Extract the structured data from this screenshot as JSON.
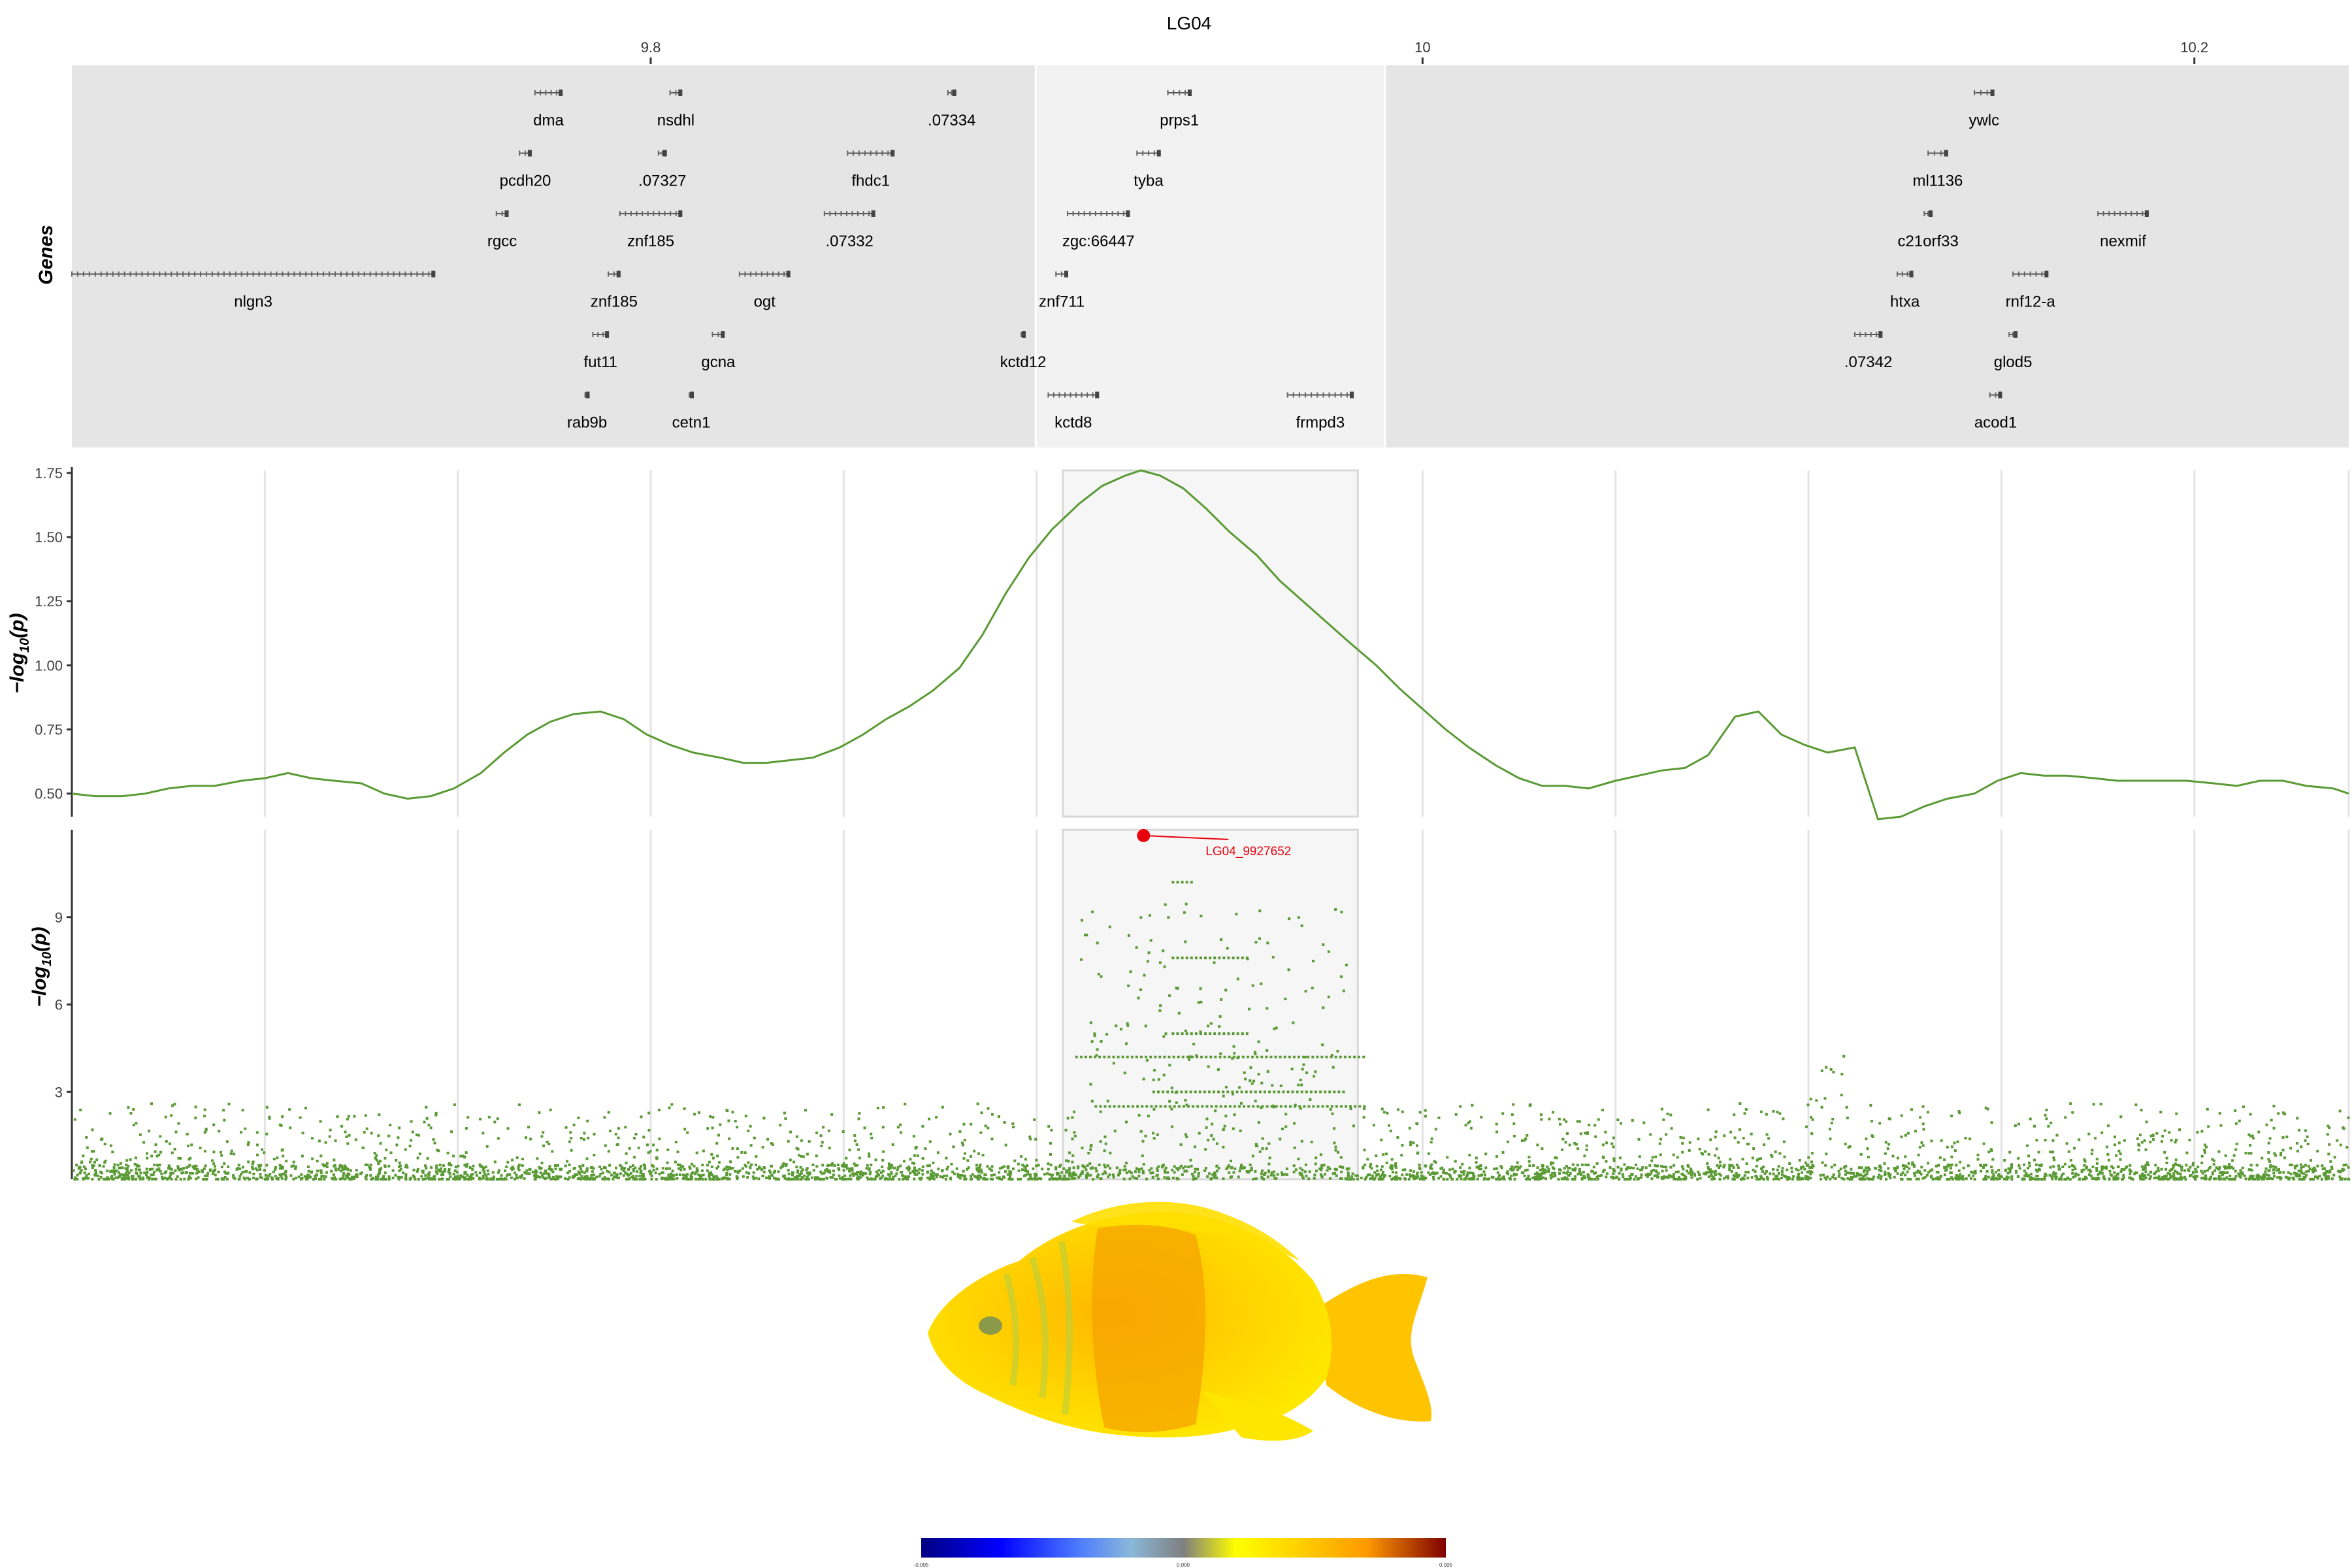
{
  "chart_data": [
    {
      "type": "gene-track",
      "title": "LG04",
      "x_ticks": [
        "9.8",
        "10",
        "10.2"
      ],
      "x_tick_values": [
        9.8,
        10.0,
        10.2
      ],
      "xlim": [
        9.65,
        10.24
      ],
      "ylabel": "Genes",
      "highlight_region": [
        9.9,
        9.99
      ],
      "genes": [
        {
          "name": "dma",
          "start": 9.77,
          "end": 9.777,
          "row": 0
        },
        {
          "name": "nsdhl",
          "start": 9.805,
          "end": 9.808,
          "row": 0
        },
        {
          "name": ".07334",
          "start": 9.877,
          "end": 9.879,
          "row": 0
        },
        {
          "name": "prps1",
          "start": 9.934,
          "end": 9.94,
          "row": 0
        },
        {
          "name": "ywlc",
          "start": 10.143,
          "end": 10.148,
          "row": 0
        },
        {
          "name": "pcdh20",
          "start": 9.766,
          "end": 9.769,
          "row": 1
        },
        {
          "name": ".07327",
          "start": 9.802,
          "end": 9.804,
          "row": 1
        },
        {
          "name": "fhdc1",
          "start": 9.851,
          "end": 9.863,
          "row": 1
        },
        {
          "name": "tyba",
          "start": 9.926,
          "end": 9.932,
          "row": 1
        },
        {
          "name": "ml1136",
          "start": 10.131,
          "end": 10.136,
          "row": 1
        },
        {
          "name": "rgcc",
          "start": 9.76,
          "end": 9.763,
          "row": 2
        },
        {
          "name": "znf185",
          "start": 9.792,
          "end": 9.808,
          "row": 2
        },
        {
          "name": ".07332",
          "start": 9.845,
          "end": 9.858,
          "row": 2
        },
        {
          "name": "zgc:66447",
          "start": 9.908,
          "end": 9.924,
          "row": 2
        },
        {
          "name": "c21orf33",
          "start": 10.13,
          "end": 10.132,
          "row": 2
        },
        {
          "name": "nexmif",
          "start": 10.175,
          "end": 10.188,
          "row": 2
        },
        {
          "name": "nlgn3",
          "start": 9.65,
          "end": 9.744,
          "row": 3
        },
        {
          "name": "znf185",
          "start": 9.789,
          "end": 9.792,
          "row": 3
        },
        {
          "name": "ogt",
          "start": 9.823,
          "end": 9.836,
          "row": 3
        },
        {
          "name": "znf711",
          "start": 9.905,
          "end": 9.908,
          "row": 3
        },
        {
          "name": "htxa",
          "start": 10.123,
          "end": 10.127,
          "row": 3
        },
        {
          "name": "rnf12-a",
          "start": 10.153,
          "end": 10.162,
          "row": 3
        },
        {
          "name": "fut11",
          "start": 9.785,
          "end": 9.789,
          "row": 4
        },
        {
          "name": "gcna",
          "start": 9.816,
          "end": 9.819,
          "row": 4
        },
        {
          "name": "kctd12",
          "start": 9.896,
          "end": 9.897,
          "row": 4
        },
        {
          "name": ".07342",
          "start": 10.112,
          "end": 10.119,
          "row": 4
        },
        {
          "name": "glod5",
          "start": 10.152,
          "end": 10.154,
          "row": 4
        },
        {
          "name": "rab9b",
          "start": 9.783,
          "end": 9.784,
          "row": 5
        },
        {
          "name": "cetn1",
          "start": 9.81,
          "end": 9.811,
          "row": 5
        },
        {
          "name": "kctd8",
          "start": 9.903,
          "end": 9.916,
          "row": 5
        },
        {
          "name": "frmpd3",
          "start": 9.965,
          "end": 9.982,
          "row": 5
        },
        {
          "name": "acod1",
          "start": 10.147,
          "end": 10.15,
          "row": 5
        }
      ]
    },
    {
      "type": "line",
      "ylabel": "-log10(p)",
      "xlim": [
        9.65,
        10.24
      ],
      "ylim": [
        0.41,
        1.76
      ],
      "y_ticks": [
        "0.50",
        "0.75",
        "1.00",
        "1.25",
        "1.50",
        "1.75"
      ],
      "y_tick_values": [
        0.5,
        0.75,
        1.0,
        1.25,
        1.5,
        1.75
      ],
      "color": "#5a9a34",
      "x": [
        9.65,
        9.656,
        9.663,
        9.669,
        9.675,
        9.681,
        9.687,
        9.694,
        9.7,
        9.706,
        9.712,
        9.718,
        9.725,
        9.731,
        9.737,
        9.743,
        9.749,
        9.756,
        9.762,
        9.768,
        9.774,
        9.78,
        9.787,
        9.793,
        9.799,
        9.805,
        9.811,
        9.818,
        9.824,
        9.83,
        9.836,
        9.842,
        9.849,
        9.855,
        9.861,
        9.867,
        9.873,
        9.88,
        9.886,
        9.892,
        9.898,
        9.904,
        9.911,
        9.917,
        9.923,
        9.927,
        9.932,
        9.938,
        9.944,
        9.95,
        9.957,
        9.963,
        9.969,
        9.975,
        9.981,
        9.988,
        9.994,
        10.0,
        10.006,
        10.012,
        10.019,
        10.025,
        10.031,
        10.037,
        10.043,
        10.05,
        10.056,
        10.062,
        10.068,
        10.074,
        10.081,
        10.087,
        10.093,
        10.099,
        10.105,
        10.112,
        10.118,
        10.124,
        10.13,
        10.136,
        10.143,
        10.149,
        10.155,
        10.161,
        10.167,
        10.174,
        10.18,
        10.186,
        10.192,
        10.198,
        10.205,
        10.211,
        10.217,
        10.223,
        10.229,
        10.236,
        10.24
      ],
      "y": [
        0.5,
        0.49,
        0.49,
        0.5,
        0.52,
        0.53,
        0.53,
        0.55,
        0.56,
        0.58,
        0.56,
        0.55,
        0.54,
        0.5,
        0.48,
        0.49,
        0.52,
        0.58,
        0.66,
        0.73,
        0.78,
        0.81,
        0.82,
        0.79,
        0.73,
        0.69,
        0.66,
        0.64,
        0.62,
        0.62,
        0.63,
        0.64,
        0.68,
        0.73,
        0.79,
        0.84,
        0.9,
        0.99,
        1.12,
        1.28,
        1.42,
        1.53,
        1.63,
        1.7,
        1.74,
        1.76,
        1.74,
        1.69,
        1.61,
        1.52,
        1.43,
        1.33,
        1.25,
        1.17,
        1.09,
        1.0,
        0.91,
        0.83,
        0.75,
        0.68,
        0.61,
        0.56,
        0.53,
        0.53,
        0.52,
        0.55,
        0.57,
        0.59,
        0.6,
        0.65,
        0.8,
        0.82,
        0.73,
        0.69,
        0.66,
        0.68,
        0.4,
        0.41,
        0.45,
        0.48,
        0.5,
        0.55,
        0.58,
        0.57,
        0.57,
        0.56,
        0.55,
        0.55,
        0.55,
        0.55,
        0.54,
        0.53,
        0.55,
        0.55,
        0.53,
        0.52,
        0.5
      ]
    },
    {
      "type": "scatter",
      "ylabel": "-log10(p)",
      "xlim": [
        9.65,
        10.24
      ],
      "ylim": [
        0,
        12
      ],
      "y_ticks": [
        "3",
        "6",
        "9"
      ],
      "y_tick_values": [
        3,
        6,
        9
      ],
      "color": "#5a9a34",
      "highlight_point": {
        "label": "LG04_9927652",
        "x": 9.9277,
        "y": 11.8,
        "color": "#e8000b"
      }
    },
    {
      "type": "colorbar",
      "range": [
        -0.005,
        0.005
      ],
      "ticks": [
        "-0.005",
        "0.000",
        "0.005"
      ],
      "colors": [
        "#000080",
        "#0000ff",
        "#4c7bff",
        "#8ab8d8",
        "#7f7f7f",
        "#ffff00",
        "#ffd000",
        "#ffa500",
        "#cc5500",
        "#7f0000"
      ]
    }
  ]
}
